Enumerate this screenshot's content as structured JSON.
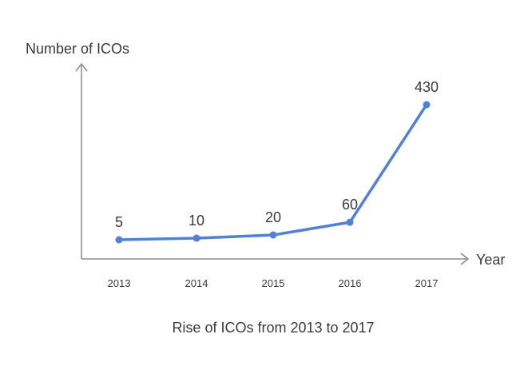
{
  "chart_data": {
    "type": "line",
    "title": "Rise of ICOs from 2013 to 2017",
    "xlabel": "Year",
    "ylabel": "Number of ICOs",
    "categories": [
      "2013",
      "2014",
      "2015",
      "2016",
      "2017"
    ],
    "series": [
      {
        "values": [
          5,
          10,
          20,
          60,
          430
        ]
      }
    ],
    "data_labels": [
      "5",
      "10",
      "20",
      "60",
      "430"
    ],
    "ylim": [
      0,
      500
    ],
    "grid": false,
    "legend": "none",
    "line_color": "#4f81d6",
    "axis_color": "#8a8a8a"
  }
}
